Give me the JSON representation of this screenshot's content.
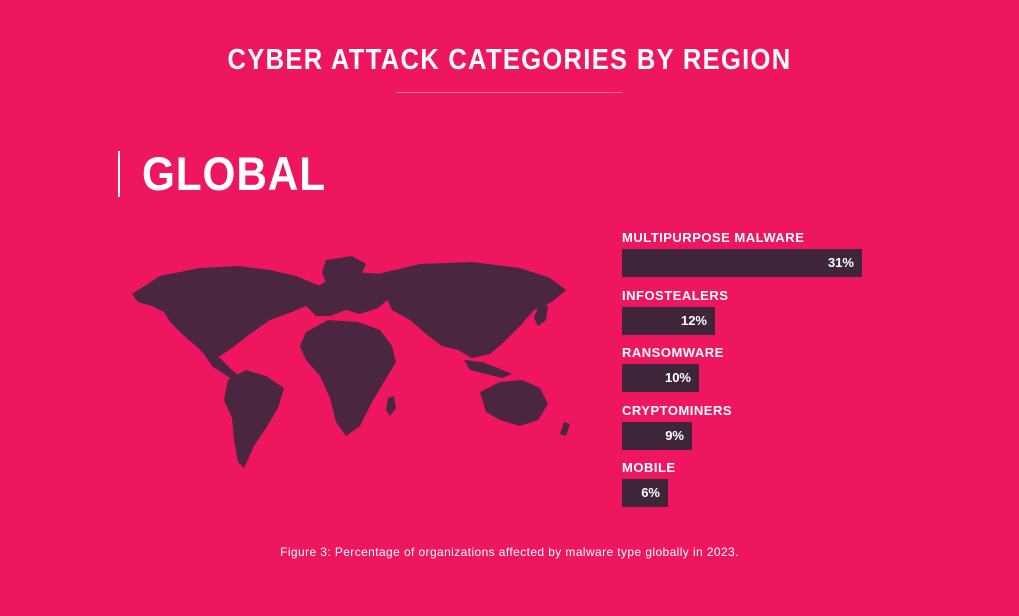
{
  "header": {
    "title": "CYBER ATTACK CATEGORIES BY REGION",
    "region": "GLOBAL"
  },
  "caption": "Figure 3: Percentage of organizations affected by malware type globally in 2023.",
  "colors": {
    "background": "#EE165E",
    "bar": "#3F2539",
    "map": "#4A2641",
    "text": "#FFFFFF"
  },
  "map_icon": "world-map",
  "chart_data": {
    "type": "bar",
    "orientation": "horizontal",
    "title": "",
    "xlabel": "",
    "ylabel": "",
    "unit": "%",
    "xlim": [
      0,
      31
    ],
    "categories": [
      "MULTIPURPOSE MALWARE",
      "INFOSTEALERS",
      "RANSOMWARE",
      "CRYPTOMINERS",
      "MOBILE"
    ],
    "values": [
      31,
      12,
      10,
      9,
      6
    ],
    "value_labels": [
      "31%",
      "12%",
      "10%",
      "9%",
      "6%"
    ]
  }
}
